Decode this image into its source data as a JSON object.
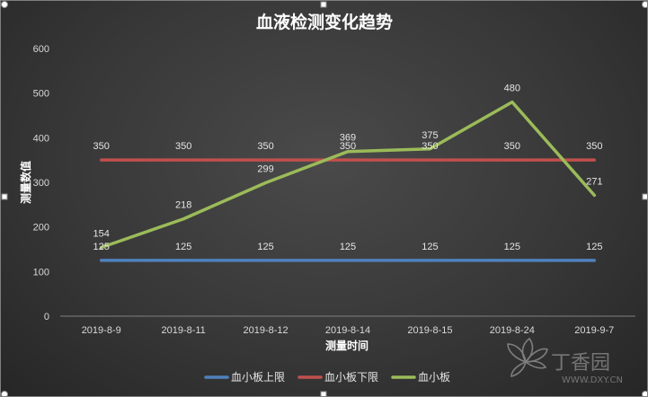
{
  "chart_data": {
    "type": "line",
    "title": "血液检测变化趋势",
    "xlabel": "测量时间",
    "ylabel": "测量数值",
    "categories": [
      "2019-8-9",
      "2019-8-11",
      "2019-8-12",
      "2019-8-14",
      "2019-8-15",
      "2019-8-24",
      "2019-9-7"
    ],
    "ylim": [
      0,
      600
    ],
    "yticks": [
      0,
      100,
      200,
      300,
      400,
      500,
      600
    ],
    "grid": false,
    "legend_position": "bottom",
    "series": [
      {
        "name": "血小板上限",
        "color": "#4f81bd",
        "values": [
          125,
          125,
          125,
          125,
          125,
          125,
          125
        ]
      },
      {
        "name": "血小板下限",
        "color": "#c0504d",
        "values": [
          350,
          350,
          350,
          350,
          350,
          350,
          350
        ]
      },
      {
        "name": "血小板",
        "color": "#9bbb59",
        "values": [
          154,
          218,
          299,
          369,
          375,
          480,
          271
        ]
      }
    ]
  },
  "watermark": {
    "text": "丁香园",
    "sub": "WWW.DXY.CN",
    "icon": "dxy-leaf-logo"
  }
}
